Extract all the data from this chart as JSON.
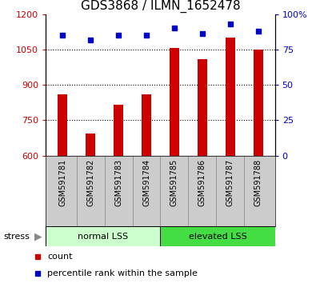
{
  "title": "GDS3868 / ILMN_1652478",
  "categories": [
    "GSM591781",
    "GSM591782",
    "GSM591783",
    "GSM591784",
    "GSM591785",
    "GSM591786",
    "GSM591787",
    "GSM591788"
  ],
  "bar_values": [
    860,
    695,
    815,
    860,
    1055,
    1010,
    1100,
    1050
  ],
  "percentile_values": [
    85,
    82,
    85,
    85,
    90,
    86,
    93,
    88
  ],
  "ylim_left": [
    600,
    1200
  ],
  "ylim_right": [
    0,
    100
  ],
  "yticks_left": [
    600,
    750,
    900,
    1050,
    1200
  ],
  "ytick_labels_left": [
    "600",
    "750",
    "900",
    "1050",
    "1200"
  ],
  "yticks_right": [
    0,
    25,
    50,
    75,
    100
  ],
  "ytick_labels_right": [
    "0",
    "25",
    "50",
    "75",
    "100%"
  ],
  "bar_color": "#cc0000",
  "dot_color": "#0000cc",
  "normal_label": "normal LSS",
  "elevated_label": "elevated LSS",
  "normal_bg": "#ccffcc",
  "elevated_bg": "#44dd44",
  "tick_label_area_bg": "#cccccc",
  "stress_label": "stress",
  "legend_count_label": "count",
  "legend_pct_label": "percentile rank within the sample",
  "title_color": "#000000",
  "left_axis_color": "#cc0000",
  "right_axis_color": "#0000cc",
  "bar_width": 0.35,
  "dot_size": 5
}
